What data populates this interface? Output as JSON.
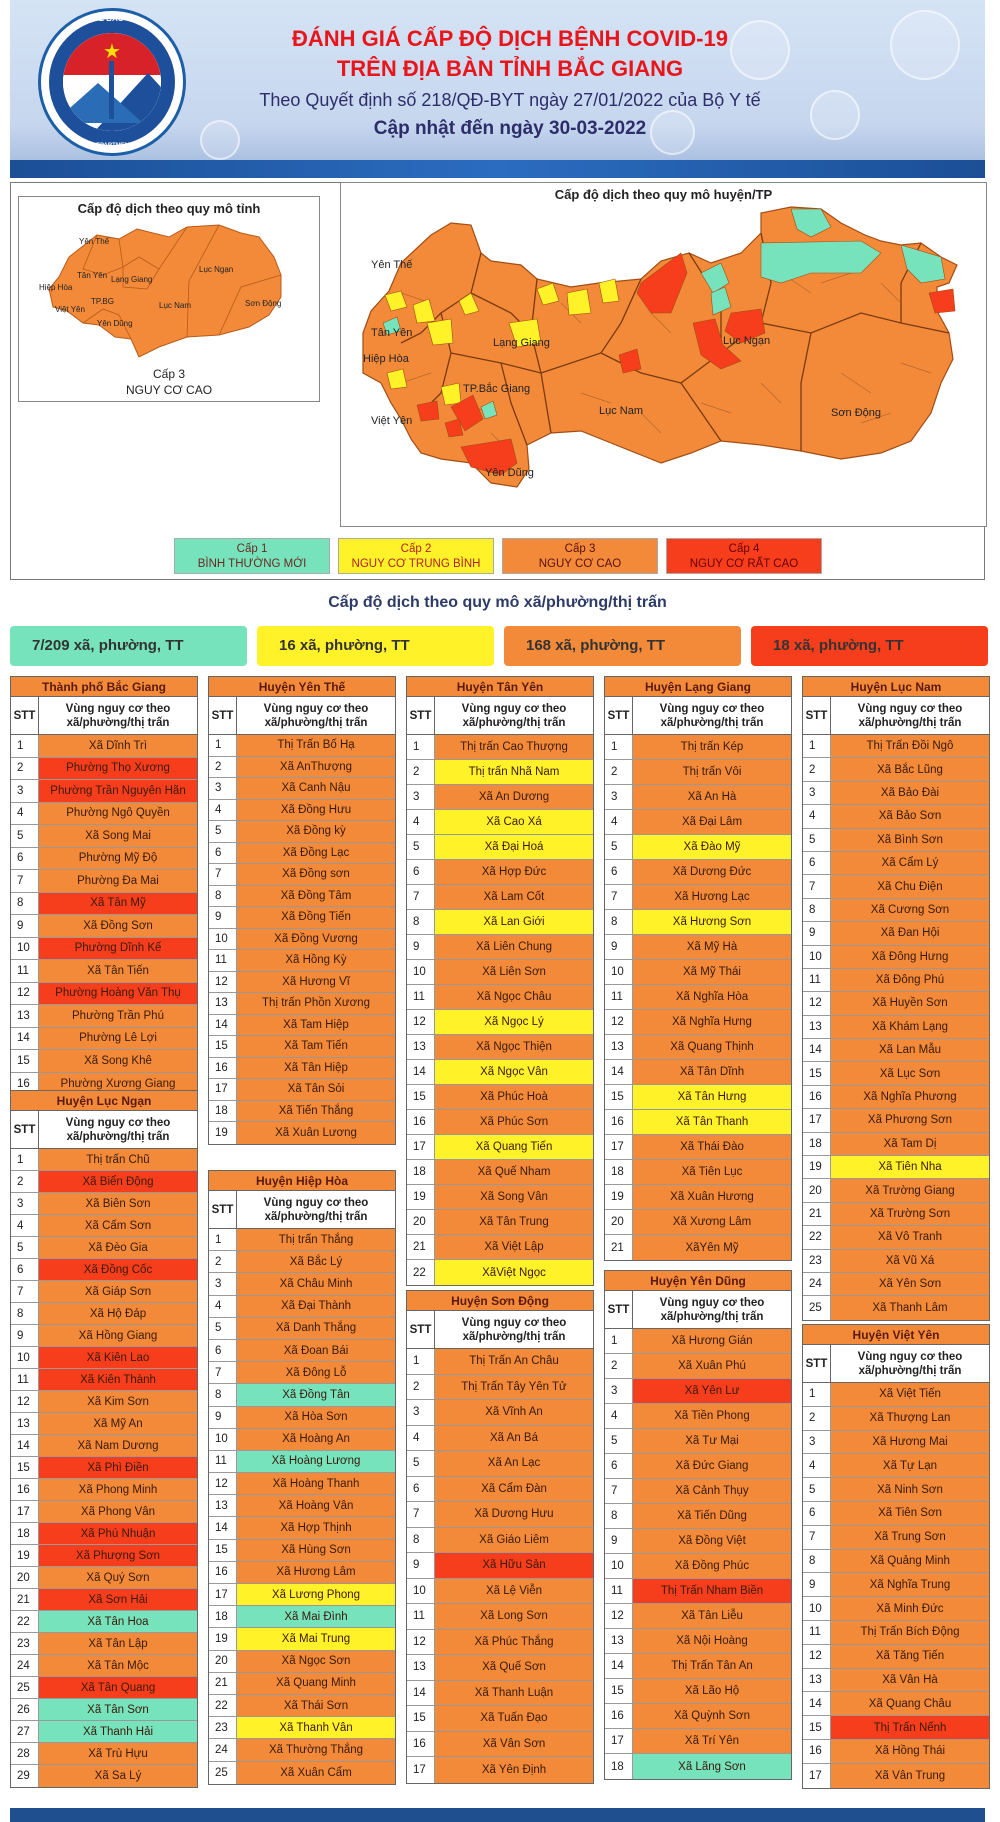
{
  "header": {
    "logo_top_text": "SỞ Y TẾ BẮC GIANG",
    "logo_bottom_text": "BAC GIANG DEPARTMENT OF HEALTH",
    "title_line1": "ĐÁNH GIÁ CẤP ĐỘ DỊCH BỆNH COVID-19",
    "title_line2": "TRÊN ĐỊA BÀN TỈNH BẮC GIANG",
    "decision": "Theo Quyết định số 218/QĐ-BYT ngày 27/01/2022 của Bộ Y tế",
    "updated": "Cập nhật đến ngày 30-03-2022"
  },
  "province_map": {
    "title": "Cấp độ dịch theo quy mô tỉnh",
    "level_label": "Cấp 3",
    "level_desc": "NGUY CƠ CAO",
    "color": "#f28a39",
    "labels": [
      "Yên Thế",
      "Tân Yên",
      "Lạng Giang",
      "Hiệp Hòa",
      "Việt Yên",
      "TP.BG",
      "Yên Dũng",
      "Lục Nam",
      "Lục Ngạn",
      "Sơn Động"
    ]
  },
  "district_map": {
    "title": "Cấp độ dịch theo quy mô huyện/TP",
    "labels": [
      "Yên Thế",
      "Tân Yên",
      "Lạng Giang",
      "Hiệp Hòa",
      "TP.Bắc Giang",
      "Việt Yên",
      "Yên Dũng",
      "Lục Nam",
      "Lục Ngạn",
      "Sơn Động"
    ]
  },
  "legend": [
    {
      "level": "Cấp 1",
      "desc": "BÌNH THƯỜNG MỚI",
      "color": "#76e3bd"
    },
    {
      "level": "Cấp 2",
      "desc": "NGUY CƠ TRUNG BÌNH",
      "color": "#fff229"
    },
    {
      "level": "Cấp 3",
      "desc": "NGUY CƠ CAO",
      "color": "#f28a39"
    },
    {
      "level": "Cấp 4",
      "desc": "NGUY CƠ RẤT CAO",
      "color": "#f73e1c"
    }
  ],
  "commune_section_title": "Cấp độ dịch theo quy mô xã/phường/thị trấn",
  "summary": [
    "7/209 xã, phường, TT",
    "16 xã, phường, TT",
    "168 xã, phường, TT",
    "18 xã, phường, TT"
  ],
  "table_header": {
    "stt": "STT",
    "name": "Vùng nguy cơ theo xã/phường/thị trấn"
  },
  "tables": [
    {
      "title": "Thành phố Bắc Giang",
      "rows": [
        [
          "1",
          "Xã Dĩnh Trì",
          3
        ],
        [
          "2",
          "Phường Thọ Xương",
          4
        ],
        [
          "3",
          "Phường Trần Nguyên Hãn",
          4
        ],
        [
          "4",
          "Phường Ngô Quyền",
          3
        ],
        [
          "5",
          "Xã Song Mai",
          3
        ],
        [
          "6",
          "Phường Mỹ Độ",
          3
        ],
        [
          "7",
          "Phường Đa Mai",
          3
        ],
        [
          "8",
          "Xã Tân Mỹ",
          4
        ],
        [
          "9",
          "Xã Đồng Sơn",
          3
        ],
        [
          "10",
          "Phường Dĩnh Kế",
          4
        ],
        [
          "11",
          "Xã Tân Tiến",
          3
        ],
        [
          "12",
          "Phường Hoàng Văn Thụ",
          4
        ],
        [
          "13",
          "Phường Trần Phú",
          3
        ],
        [
          "14",
          "Phường Lê Lợi",
          3
        ],
        [
          "15",
          "Xã Song Khê",
          3
        ],
        [
          "16",
          "Phường Xương Giang",
          3
        ]
      ]
    },
    {
      "title": "Huyện Lục Ngạn",
      "rows": [
        [
          "1",
          "Thị trấn Chũ",
          3
        ],
        [
          "2",
          "Xã Biển Động",
          4
        ],
        [
          "3",
          "Xã Biên Sơn",
          3
        ],
        [
          "4",
          "Xã Cấm Sơn",
          3
        ],
        [
          "5",
          "Xã Đèo Gia",
          3
        ],
        [
          "6",
          "Xã Đồng Cốc",
          4
        ],
        [
          "7",
          "Xã Giáp Sơn",
          3
        ],
        [
          "8",
          "Xã Hộ Đáp",
          3
        ],
        [
          "9",
          "Xã Hồng Giang",
          3
        ],
        [
          "10",
          "Xã Kiên Lao",
          4
        ],
        [
          "11",
          "Xã Kiên Thành",
          4
        ],
        [
          "12",
          "Xã Kim Sơn",
          3
        ],
        [
          "13",
          "Xã Mỹ An",
          3
        ],
        [
          "14",
          "Xã Nam Dương",
          3
        ],
        [
          "15",
          "Xã Phì Điền",
          4
        ],
        [
          "16",
          "Xã Phong Minh",
          3
        ],
        [
          "17",
          "Xã Phong Vân",
          3
        ],
        [
          "18",
          "Xã Phú Nhuận",
          4
        ],
        [
          "19",
          "Xã Phượng Sơn",
          4
        ],
        [
          "20",
          "Xã Quý Sơn",
          3
        ],
        [
          "21",
          "Xã Sơn Hải",
          4
        ],
        [
          "22",
          "Xã Tân Hoa",
          1
        ],
        [
          "23",
          "Xã Tân Lập",
          3
        ],
        [
          "24",
          "Xã Tân Mộc",
          3
        ],
        [
          "25",
          "Xã Tân Quang",
          4
        ],
        [
          "26",
          "Xã Tân Sơn",
          1
        ],
        [
          "27",
          "Xã Thanh Hải",
          1
        ],
        [
          "28",
          "Xã Trù Hựu",
          3
        ],
        [
          "29",
          "Xã Sa Lý",
          3
        ]
      ]
    },
    {
      "title": "Huyện Yên Thế",
      "rows": [
        [
          "1",
          "Thị Trấn Bố Hạ",
          3
        ],
        [
          "2",
          "Xã AnThượng",
          3
        ],
        [
          "3",
          "Xã Canh Nậu",
          3
        ],
        [
          "4",
          "Xã Đồng Hưu",
          3
        ],
        [
          "5",
          "Xã Đồng kỳ",
          3
        ],
        [
          "6",
          "Xã Đồng Lạc",
          3
        ],
        [
          "7",
          "Xã Đồng sơn",
          3
        ],
        [
          "8",
          "Xã Đồng Tâm",
          3
        ],
        [
          "9",
          "Xã Đồng Tiến",
          3
        ],
        [
          "10",
          "Xã Đồng Vương",
          3
        ],
        [
          "11",
          "Xã Hồng Kỳ",
          3
        ],
        [
          "12",
          "Xã Hương Vĩ",
          3
        ],
        [
          "13",
          "Thị trấn Phồn Xương",
          3
        ],
        [
          "14",
          "Xã Tam Hiệp",
          3
        ],
        [
          "15",
          "Xã Tam Tiến",
          3
        ],
        [
          "16",
          "Xã Tân Hiệp",
          3
        ],
        [
          "17",
          "Xã Tân Sỏi",
          3
        ],
        [
          "18",
          "Xã Tiến Thắng",
          3
        ],
        [
          "19",
          "Xã Xuân Lương",
          3
        ]
      ]
    },
    {
      "title": "Huyện Hiệp Hòa",
      "rows": [
        [
          "1",
          "Thị trấn Thắng",
          3
        ],
        [
          "2",
          "Xã Bắc Lý",
          3
        ],
        [
          "3",
          "Xã Châu Minh",
          3
        ],
        [
          "4",
          "Xã Đại Thành",
          3
        ],
        [
          "5",
          "Xã Danh Thắng",
          3
        ],
        [
          "6",
          "Xã Đoan Bái",
          3
        ],
        [
          "7",
          "Xã Đông Lỗ",
          3
        ],
        [
          "8",
          "Xã Đồng Tân",
          1
        ],
        [
          "9",
          "Xã Hòa Sơn",
          3
        ],
        [
          "10",
          "Xã Hoàng An",
          3
        ],
        [
          "11",
          "Xã Hoàng Lương",
          1
        ],
        [
          "12",
          "Xã Hoàng Thanh",
          3
        ],
        [
          "13",
          "Xã Hoàng Vân",
          3
        ],
        [
          "14",
          "Xã Hợp Thịnh",
          3
        ],
        [
          "15",
          "Xã Hùng Sơn",
          3
        ],
        [
          "16",
          "Xã Hương Lâm",
          3
        ],
        [
          "17",
          "Xã Lương Phong",
          2
        ],
        [
          "18",
          "Xã Mai Đình",
          1
        ],
        [
          "19",
          "Xã Mai Trung",
          2
        ],
        [
          "20",
          "Xã Ngọc Sơn",
          3
        ],
        [
          "21",
          "Xã Quang Minh",
          3
        ],
        [
          "22",
          "Xã Thái Sơn",
          3
        ],
        [
          "23",
          "Xã Thanh Vân",
          2
        ],
        [
          "24",
          "Xã Thường Thắng",
          3
        ],
        [
          "25",
          "Xã Xuân Cẩm",
          3
        ]
      ]
    },
    {
      "title": "Huyện Tân Yên",
      "rows": [
        [
          "1",
          "Thị trấn Cao Thượng",
          3
        ],
        [
          "2",
          "Thị trấn Nhã Nam",
          2
        ],
        [
          "3",
          "Xã An Dương",
          3
        ],
        [
          "4",
          "Xã Cao Xá",
          2
        ],
        [
          "5",
          "Xã Đại Hoá",
          2
        ],
        [
          "6",
          "Xã Hợp Đức",
          3
        ],
        [
          "7",
          "Xã Lam Cốt",
          3
        ],
        [
          "8",
          "Xã Lan Giới",
          2
        ],
        [
          "9",
          "Xã Liên Chung",
          3
        ],
        [
          "10",
          "Xã Liên Sơn",
          3
        ],
        [
          "11",
          "Xã Ngọc Châu",
          3
        ],
        [
          "12",
          "Xã Ngọc Lý",
          2
        ],
        [
          "13",
          "Xã Ngọc Thiện",
          3
        ],
        [
          "14",
          "Xã Ngọc Vân",
          2
        ],
        [
          "15",
          "Xã Phúc Hoà",
          3
        ],
        [
          "16",
          "Xã Phúc Sơn",
          3
        ],
        [
          "17",
          "Xã Quang Tiến",
          2
        ],
        [
          "18",
          "Xã Quế Nham",
          3
        ],
        [
          "19",
          "Xã Song Vân",
          3
        ],
        [
          "20",
          "Xã Tân Trung",
          3
        ],
        [
          "21",
          "Xã Việt Lập",
          3
        ],
        [
          "22",
          "XãViệt Ngọc",
          2
        ]
      ]
    },
    {
      "title": "Huyện Sơn Động",
      "rows": [
        [
          "1",
          "Thị Trấn An Châu",
          3
        ],
        [
          "2",
          "Thị Trấn Tây Yên Tử",
          3
        ],
        [
          "3",
          "Xã Vĩnh An",
          3
        ],
        [
          "4",
          "Xã An Bá",
          3
        ],
        [
          "5",
          "Xã An Lạc",
          3
        ],
        [
          "6",
          "Xã Cẩm Đàn",
          3
        ],
        [
          "7",
          "Xã Dương Hưu",
          3
        ],
        [
          "8",
          "Xã Giáo Liêm",
          3
        ],
        [
          "9",
          "Xã Hữu Sản",
          4
        ],
        [
          "10",
          "Xã Lệ Viễn",
          3
        ],
        [
          "11",
          "Xã Long Sơn",
          3
        ],
        [
          "12",
          "Xã Phúc Thắng",
          3
        ],
        [
          "13",
          "Xã Quế Sơn",
          3
        ],
        [
          "14",
          "Xã Thanh Luận",
          3
        ],
        [
          "15",
          "Xã Tuấn Đạo",
          3
        ],
        [
          "16",
          "Xã Vân Sơn",
          3
        ],
        [
          "17",
          "Xã Yên Định",
          3
        ]
      ]
    },
    {
      "title": "Huyện Lạng Giang",
      "rows": [
        [
          "1",
          "Thị trấn Kép",
          3
        ],
        [
          "2",
          "Thị trấn Vôi",
          3
        ],
        [
          "3",
          "Xã An Hà",
          3
        ],
        [
          "4",
          "Xã Đại Lâm",
          3
        ],
        [
          "5",
          "Xã Đào Mỹ",
          2
        ],
        [
          "6",
          "Xã Dương Đức",
          3
        ],
        [
          "7",
          "Xã Hương Lạc",
          3
        ],
        [
          "8",
          "Xã Hương Sơn",
          2
        ],
        [
          "9",
          "Xã Mỹ Hà",
          3
        ],
        [
          "10",
          "Xã Mỹ Thái",
          3
        ],
        [
          "11",
          "Xã Nghĩa Hòa",
          3
        ],
        [
          "12",
          "Xã Nghĩa Hưng",
          3
        ],
        [
          "13",
          "Xã Quang Thịnh",
          3
        ],
        [
          "14",
          "Xã Tân Dĩnh",
          3
        ],
        [
          "15",
          "Xã Tân Hưng",
          2
        ],
        [
          "16",
          "Xã Tân Thanh",
          2
        ],
        [
          "17",
          "Xã Thái Đào",
          3
        ],
        [
          "18",
          "Xã Tiên Lục",
          3
        ],
        [
          "19",
          "Xã Xuân Hương",
          3
        ],
        [
          "20",
          "Xã Xương Lâm",
          3
        ],
        [
          "21",
          "XãYên Mỹ",
          3
        ]
      ]
    },
    {
      "title": "Huyện Yên Dũng",
      "rows": [
        [
          "1",
          "Xã Hương Gián",
          3
        ],
        [
          "2",
          "Xã Xuân Phú",
          3
        ],
        [
          "3",
          "Xã Yên Lư",
          4
        ],
        [
          "4",
          "Xã Tiền Phong",
          3
        ],
        [
          "5",
          "Xã Tư Mại",
          3
        ],
        [
          "6",
          "Xã Đức Giang",
          3
        ],
        [
          "7",
          "Xã Cảnh Thụy",
          3
        ],
        [
          "8",
          "Xã Tiến Dũng",
          3
        ],
        [
          "9",
          "Xã Đồng Việt",
          3
        ],
        [
          "10",
          "Xã Đồng Phúc",
          3
        ],
        [
          "11",
          "Thị Trấn Nham Biền",
          4
        ],
        [
          "12",
          "Xã Tân Liễu",
          3
        ],
        [
          "13",
          "Xã Nội Hoàng",
          3
        ],
        [
          "14",
          "Thị Trấn Tân An",
          3
        ],
        [
          "15",
          "Xã Lão Hộ",
          3
        ],
        [
          "16",
          "Xã Quỳnh Sơn",
          3
        ],
        [
          "17",
          "Xã Trí Yên",
          3
        ],
        [
          "18",
          "Xã Lãng Sơn",
          1
        ]
      ]
    },
    {
      "title": "Huyện Lục Nam",
      "rows": [
        [
          "1",
          "Thị Trấn Đồi Ngô",
          3
        ],
        [
          "2",
          "Xã Bắc Lũng",
          3
        ],
        [
          "3",
          "Xã Bảo Đài",
          3
        ],
        [
          "4",
          "Xã Bảo Sơn",
          3
        ],
        [
          "5",
          "Xã Bình Sơn",
          3
        ],
        [
          "6",
          "Xã Cẩm Lý",
          3
        ],
        [
          "7",
          "Xã Chu Điện",
          3
        ],
        [
          "8",
          "Xã Cương Sơn",
          3
        ],
        [
          "9",
          "Xã Đan Hội",
          3
        ],
        [
          "10",
          "Xã Đông Hưng",
          3
        ],
        [
          "11",
          "Xã Đông Phú",
          3
        ],
        [
          "12",
          "Xã Huyền Sơn",
          3
        ],
        [
          "13",
          "Xã Khám Lạng",
          3
        ],
        [
          "14",
          "Xã Lan Mẫu",
          3
        ],
        [
          "15",
          "Xã Lục Sơn",
          3
        ],
        [
          "16",
          "Xã Nghĩa Phương",
          3
        ],
        [
          "17",
          "Xã Phương Sơn",
          3
        ],
        [
          "18",
          "Xã Tam Dị",
          3
        ],
        [
          "19",
          "Xã Tiên Nha",
          2
        ],
        [
          "20",
          "Xã Trường Giang",
          3
        ],
        [
          "21",
          "Xã Trường Sơn",
          3
        ],
        [
          "22",
          "Xã Vô Tranh",
          3
        ],
        [
          "23",
          "Xã Vũ Xá",
          3
        ],
        [
          "24",
          "Xã Yên Sơn",
          3
        ],
        [
          "25",
          "Xã Thanh Lâm",
          3
        ]
      ]
    },
    {
      "title": "Huyện Việt Yên",
      "rows": [
        [
          "1",
          "Xã Việt Tiến",
          3
        ],
        [
          "2",
          "Xã Thượng Lan",
          3
        ],
        [
          "3",
          "Xã Hương Mai",
          3
        ],
        [
          "4",
          "Xã Tự Lạn",
          3
        ],
        [
          "5",
          "Xã Ninh Sơn",
          3
        ],
        [
          "6",
          "Xã Tiên Sơn",
          3
        ],
        [
          "7",
          "Xã Trung Sơn",
          3
        ],
        [
          "8",
          "Xã Quảng Minh",
          3
        ],
        [
          "9",
          "Xã Nghĩa Trung",
          3
        ],
        [
          "10",
          "Xã Minh Đức",
          3
        ],
        [
          "11",
          "Thị Trấn Bích Động",
          3
        ],
        [
          "12",
          "Xã Tăng Tiến",
          3
        ],
        [
          "13",
          "Xã Vân Hà",
          3
        ],
        [
          "14",
          "Xã Quang Châu",
          3
        ],
        [
          "15",
          "Thị Trấn Nếnh",
          4
        ],
        [
          "16",
          "Xã Hồng Thái",
          3
        ],
        [
          "17",
          "Xã Vân Trung",
          3
        ]
      ]
    }
  ]
}
